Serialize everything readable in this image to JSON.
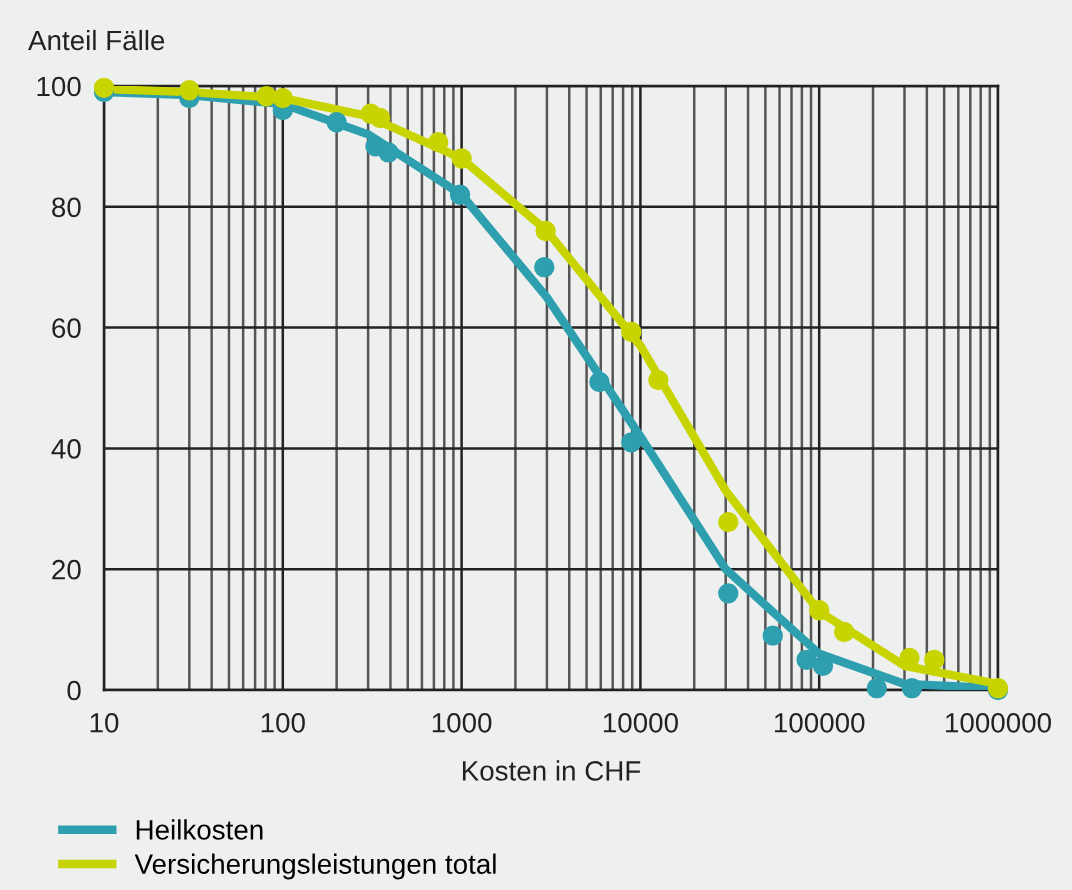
{
  "chart_data": {
    "type": "line",
    "xlabel": "Kosten in CHF",
    "ylabel": "Anteil Fälle",
    "log": "x",
    "xlim": [
      10,
      1000000
    ],
    "xticks": [
      {
        "value": 10,
        "label": "10"
      },
      {
        "value": 100,
        "label": "100"
      },
      {
        "value": 1000,
        "label": "1000"
      },
      {
        "value": 10000,
        "label": "10000"
      },
      {
        "value": 100000,
        "label": "100000"
      },
      {
        "value": 1000000,
        "label": "1000000"
      }
    ],
    "ylim": [
      0,
      100
    ],
    "yticks": [
      0,
      20,
      40,
      60,
      80,
      100
    ],
    "grid": true,
    "legend": "bottom",
    "series": [
      {
        "name": "Heilkosten",
        "color": "#2e9fae",
        "x": [
          10,
          30,
          100,
          300,
          1000,
          3000,
          10000,
          30000,
          100000,
          300000,
          1000000
        ],
        "values": [
          99,
          98.5,
          97,
          92,
          82,
          65,
          42,
          20,
          6,
          1,
          0.3
        ]
      },
      {
        "name": "Versicherungsleistungen total",
        "color": "#c8d400",
        "x": [
          10,
          30,
          100,
          300,
          1000,
          3000,
          10000,
          30000,
          100000,
          300000,
          1000000
        ],
        "values": [
          99.5,
          99,
          98,
          95,
          88,
          76,
          57,
          33,
          13,
          4,
          1
        ]
      },
      {
        "type": "scatter",
        "marker": "circle",
        "color": "#2e9fae",
        "x": [
          10,
          30,
          100,
          200,
          330,
          390,
          980,
          2900,
          5900,
          8900,
          31000,
          55000,
          85000,
          105000,
          210000,
          330000,
          1000000
        ],
        "values": [
          99,
          98,
          96,
          94,
          90,
          89,
          82,
          70,
          51,
          41,
          16,
          9,
          5,
          4,
          0.3,
          0.3,
          0
        ]
      },
      {
        "type": "scatter",
        "marker": "circle",
        "color": "#c8d400",
        "x": [
          10,
          30,
          81,
          100,
          310,
          350,
          740,
          1000,
          2950,
          8900,
          12600,
          31000,
          100000,
          138000,
          320000,
          440000,
          1000000
        ],
        "values": [
          99.7,
          99.3,
          98.3,
          98,
          95.4,
          94.7,
          90.7,
          88,
          76,
          59.3,
          51.3,
          27.8,
          13.2,
          9.6,
          5.3,
          5,
          0.3
        ]
      }
    ]
  }
}
